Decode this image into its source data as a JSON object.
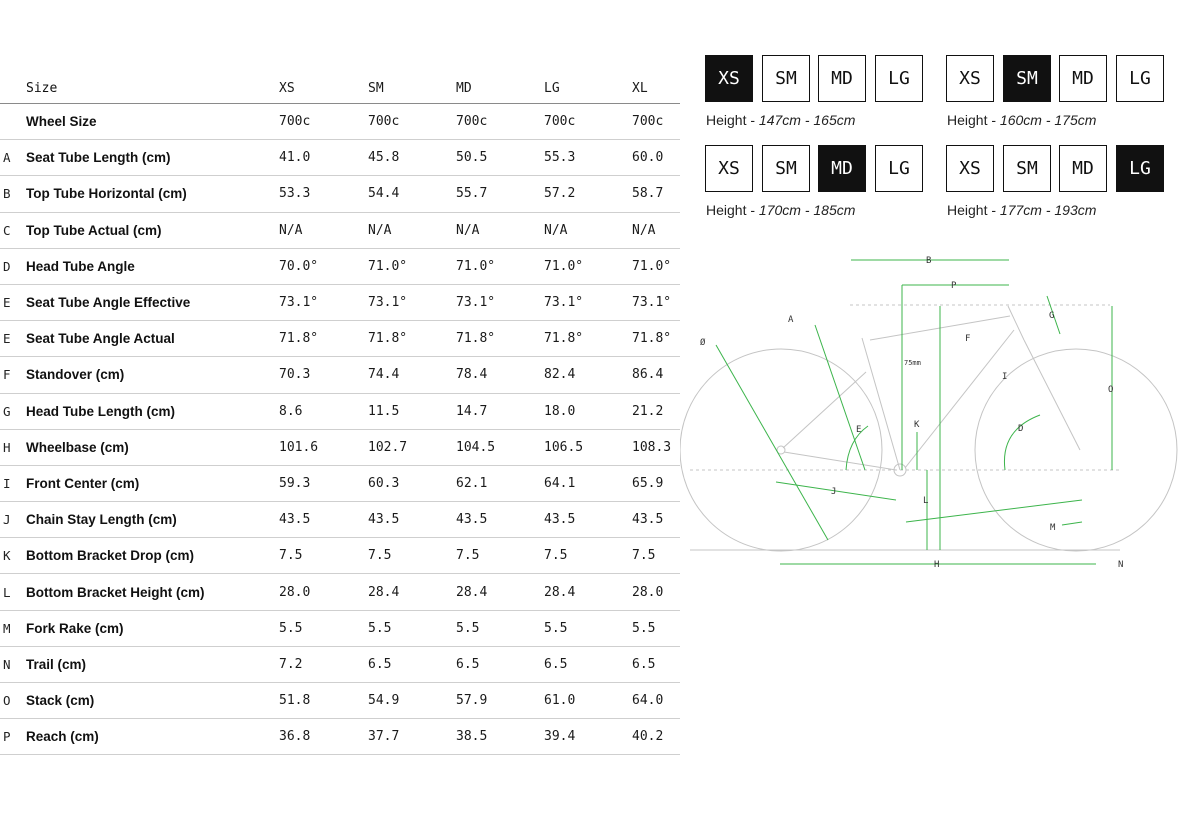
{
  "table": {
    "header": {
      "label": "Size",
      "sizes": [
        "XS",
        "SM",
        "MD",
        "LG",
        "XL"
      ]
    },
    "rows": [
      {
        "letter": "",
        "label": "Wheel Size",
        "values": [
          "700c",
          "700c",
          "700c",
          "700c",
          "700c"
        ]
      },
      {
        "letter": "A",
        "label": "Seat Tube Length (cm)",
        "values": [
          "41.0",
          "45.8",
          "50.5",
          "55.3",
          "60.0"
        ]
      },
      {
        "letter": "B",
        "label": "Top Tube Horizontal (cm)",
        "values": [
          "53.3",
          "54.4",
          "55.7",
          "57.2",
          "58.7"
        ]
      },
      {
        "letter": "C",
        "label": "Top Tube Actual (cm)",
        "values": [
          "N/A",
          "N/A",
          "N/A",
          "N/A",
          "N/A"
        ]
      },
      {
        "letter": "D",
        "label": "Head Tube Angle",
        "values": [
          "70.0°",
          "71.0°",
          "71.0°",
          "71.0°",
          "71.0°"
        ]
      },
      {
        "letter": "E",
        "label": "Seat Tube Angle Effective",
        "values": [
          "73.1°",
          "73.1°",
          "73.1°",
          "73.1°",
          "73.1°"
        ]
      },
      {
        "letter": "E",
        "label": "Seat Tube Angle Actual",
        "values": [
          "71.8°",
          "71.8°",
          "71.8°",
          "71.8°",
          "71.8°"
        ]
      },
      {
        "letter": "F",
        "label": "Standover (cm)",
        "values": [
          "70.3",
          "74.4",
          "78.4",
          "82.4",
          "86.4"
        ]
      },
      {
        "letter": "G",
        "label": "Head Tube Length (cm)",
        "values": [
          "8.6",
          "11.5",
          "14.7",
          "18.0",
          "21.2"
        ]
      },
      {
        "letter": "H",
        "label": "Wheelbase (cm)",
        "values": [
          "101.6",
          "102.7",
          "104.5",
          "106.5",
          "108.3"
        ]
      },
      {
        "letter": "I",
        "label": "Front Center (cm)",
        "values": [
          "59.3",
          "60.3",
          "62.1",
          "64.1",
          "65.9"
        ]
      },
      {
        "letter": "J",
        "label": "Chain Stay Length (cm)",
        "values": [
          "43.5",
          "43.5",
          "43.5",
          "43.5",
          "43.5"
        ]
      },
      {
        "letter": "K",
        "label": "Bottom Bracket Drop (cm)",
        "values": [
          "7.5",
          "7.5",
          "7.5",
          "7.5",
          "7.5"
        ]
      },
      {
        "letter": "L",
        "label": "Bottom Bracket Height (cm)",
        "values": [
          "28.0",
          "28.4",
          "28.4",
          "28.4",
          "28.0"
        ]
      },
      {
        "letter": "M",
        "label": "Fork Rake (cm)",
        "values": [
          "5.5",
          "5.5",
          "5.5",
          "5.5",
          "5.5"
        ]
      },
      {
        "letter": "N",
        "label": "Trail (cm)",
        "values": [
          "7.2",
          "6.5",
          "6.5",
          "6.5",
          "6.5"
        ]
      },
      {
        "letter": "O",
        "label": "Stack (cm)",
        "values": [
          "51.8",
          "54.9",
          "57.9",
          "61.0",
          "64.0"
        ]
      },
      {
        "letter": "P",
        "label": "Reach (cm)",
        "values": [
          "36.8",
          "37.7",
          "38.5",
          "39.4",
          "40.2"
        ]
      }
    ]
  },
  "size_guides": [
    {
      "boxes": [
        "XS",
        "SM",
        "MD",
        "LG"
      ],
      "active": "XS",
      "height_prefix": "Height - ",
      "height_range": "147cm - 165cm"
    },
    {
      "boxes": [
        "XS",
        "SM",
        "MD",
        "LG"
      ],
      "active": "SM",
      "height_prefix": "Height - ",
      "height_range": "160cm - 175cm"
    },
    {
      "boxes": [
        "XS",
        "SM",
        "MD",
        "LG"
      ],
      "active": "MD",
      "height_prefix": "Height - ",
      "height_range": "170cm - 185cm"
    },
    {
      "boxes": [
        "XS",
        "SM",
        "MD",
        "LG"
      ],
      "active": "LG",
      "height_prefix": "Height - ",
      "height_range": "177cm - 193cm"
    }
  ],
  "diagram": {
    "labels": {
      "a": "A",
      "b": "B",
      "p": "P",
      "g": "G",
      "f": "F",
      "i": "I",
      "o": "O",
      "d": "D",
      "e": "E",
      "k": "K",
      "j": "J",
      "l": "L",
      "m": "M",
      "h": "H",
      "n": "N",
      "wheel": "Ø",
      "offset": "75mm"
    },
    "colors": {
      "frame": "#c4c4c4",
      "dimension": "#3cb44b",
      "selected": "#111111"
    }
  }
}
